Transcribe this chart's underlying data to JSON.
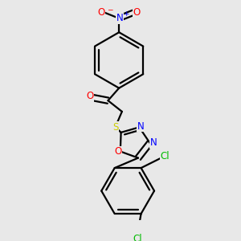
{
  "bg_color": "#e8e8e8",
  "bond_color": "#000000",
  "bond_width": 1.6,
  "atom_colors": {
    "O": "#ff0000",
    "N": "#0000ff",
    "S": "#cccc00",
    "Cl": "#00bb00",
    "C": "#000000"
  },
  "font_size": 8.5,
  "font_size_small": 6.5
}
